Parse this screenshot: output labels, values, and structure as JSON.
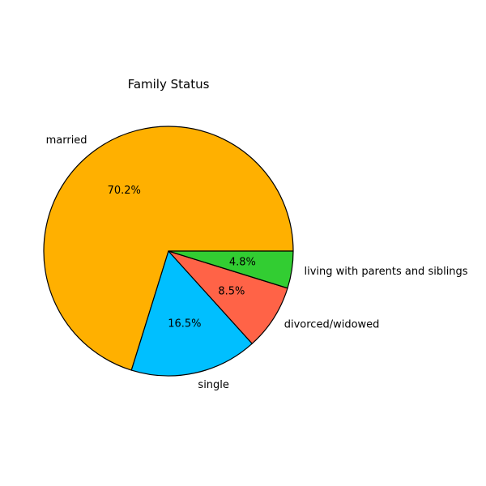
{
  "chart_data": {
    "type": "pie",
    "title": "Family Status",
    "slices": [
      {
        "label": "married",
        "value": 70.2,
        "pct_label": "70.2%",
        "color": "#FFB000"
      },
      {
        "label": "single",
        "value": 16.5,
        "pct_label": "16.5%",
        "color": "#00BFFF"
      },
      {
        "label": "divorced/widowed",
        "value": 8.5,
        "pct_label": "8.5%",
        "color": "#FF6347"
      },
      {
        "label": "living with parents and siblings",
        "value": 4.8,
        "pct_label": "4.8%",
        "color": "#32CD32"
      }
    ],
    "start_angle": 0,
    "direction": "counterclockwise",
    "edge_color": "#000000",
    "legend": "none"
  }
}
